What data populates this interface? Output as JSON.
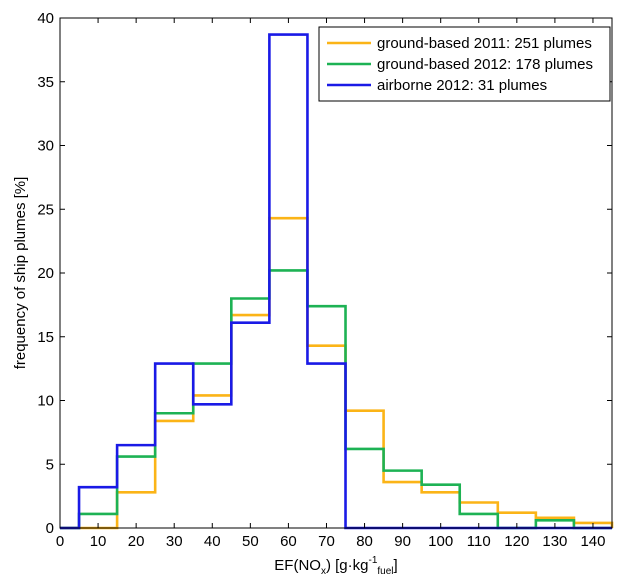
{
  "chart_data": {
    "type": "line",
    "subtype": "step-histogram",
    "xlabel": {
      "base": "EF(NO",
      "sub1": "x",
      "mid": ") [g·kg",
      "sup": "-1",
      "sub2": "fuel",
      "end": "]"
    },
    "ylabel": "frequency of ship plumes [%]",
    "xlim": [
      0,
      145
    ],
    "ylim": [
      0,
      40
    ],
    "xticks": [
      0,
      10,
      20,
      30,
      40,
      50,
      60,
      70,
      80,
      90,
      100,
      110,
      120,
      130,
      140
    ],
    "yticks": [
      0,
      5,
      10,
      15,
      20,
      25,
      30,
      35,
      40
    ],
    "bin_edges": [
      5,
      15,
      25,
      35,
      45,
      55,
      65,
      75,
      85,
      95,
      105,
      115,
      125,
      135,
      145
    ],
    "grid": false,
    "legend_position": "top-right",
    "series": [
      {
        "name": "ground-based 2011: 251 plumes",
        "color": "#FBB417",
        "values": [
          0,
          2.8,
          8.4,
          10.4,
          16.7,
          24.3,
          14.3,
          9.2,
          3.6,
          2.8,
          2.0,
          1.2,
          0.8,
          0.4
        ]
      },
      {
        "name": "ground-based 2012: 178 plumes",
        "color": "#1DB254",
        "values": [
          1.1,
          5.6,
          9.0,
          12.9,
          18.0,
          20.2,
          17.4,
          6.2,
          4.5,
          3.4,
          1.1,
          0,
          0.6,
          0
        ]
      },
      {
        "name": "airborne 2012: 31 plumes",
        "color": "#1A1AE6",
        "values": [
          3.2,
          6.5,
          12.9,
          9.7,
          16.1,
          38.7,
          12.9,
          0,
          0,
          0,
          0,
          0,
          0,
          0
        ]
      }
    ]
  }
}
